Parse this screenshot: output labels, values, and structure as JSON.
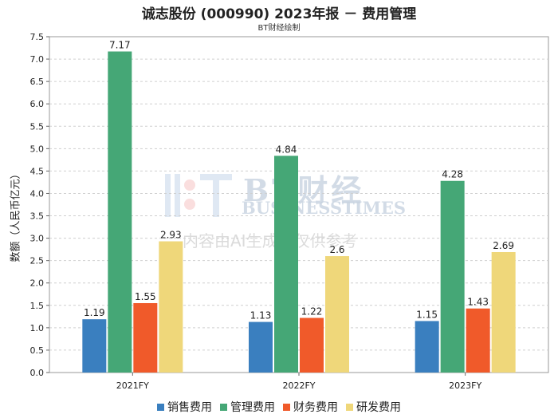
{
  "header": {
    "title": "诚志股份 (000990) 2023年报 － 费用管理",
    "subtitle": "BT财经绘制"
  },
  "watermark": {
    "brand_cn": "BT财经",
    "brand_en": "BUSINESSTIMES",
    "note": "内容由AI生成，仅供参考"
  },
  "chart_data": {
    "type": "bar",
    "title": "诚志股份 (000990) 2023年报 － 费用管理",
    "subtitle": "BT财经绘制",
    "xlabel": "",
    "ylabel": "数额（人民币亿元）",
    "categories": [
      "2021FY",
      "2022FY",
      "2023FY"
    ],
    "ylim": [
      0,
      7.5
    ],
    "yticks": [
      "0.0",
      "0.5",
      "1.0",
      "1.5",
      "2.0",
      "2.5",
      "3.0",
      "3.5",
      "4.0",
      "4.5",
      "5.0",
      "5.5",
      "6.0",
      "6.5",
      "7.0",
      "7.5"
    ],
    "grid": true,
    "legend_position": "bottom",
    "series": [
      {
        "name": "销售费用",
        "color": "#3a7fbf",
        "values": [
          1.19,
          1.13,
          1.15
        ],
        "labels": [
          "1.19",
          "1.13",
          "1.15"
        ]
      },
      {
        "name": "管理费用",
        "color": "#45a776",
        "values": [
          7.17,
          4.84,
          4.28
        ],
        "labels": [
          "7.17",
          "4.84",
          "4.28"
        ]
      },
      {
        "name": "财务费用",
        "color": "#f05a2a",
        "values": [
          1.55,
          1.22,
          1.43
        ],
        "labels": [
          "1.55",
          "1.22",
          "1.43"
        ]
      },
      {
        "name": "研发费用",
        "color": "#efd77a",
        "values": [
          2.93,
          2.6,
          2.69
        ],
        "labels": [
          "2.93",
          "2.6",
          "2.69"
        ]
      }
    ]
  }
}
